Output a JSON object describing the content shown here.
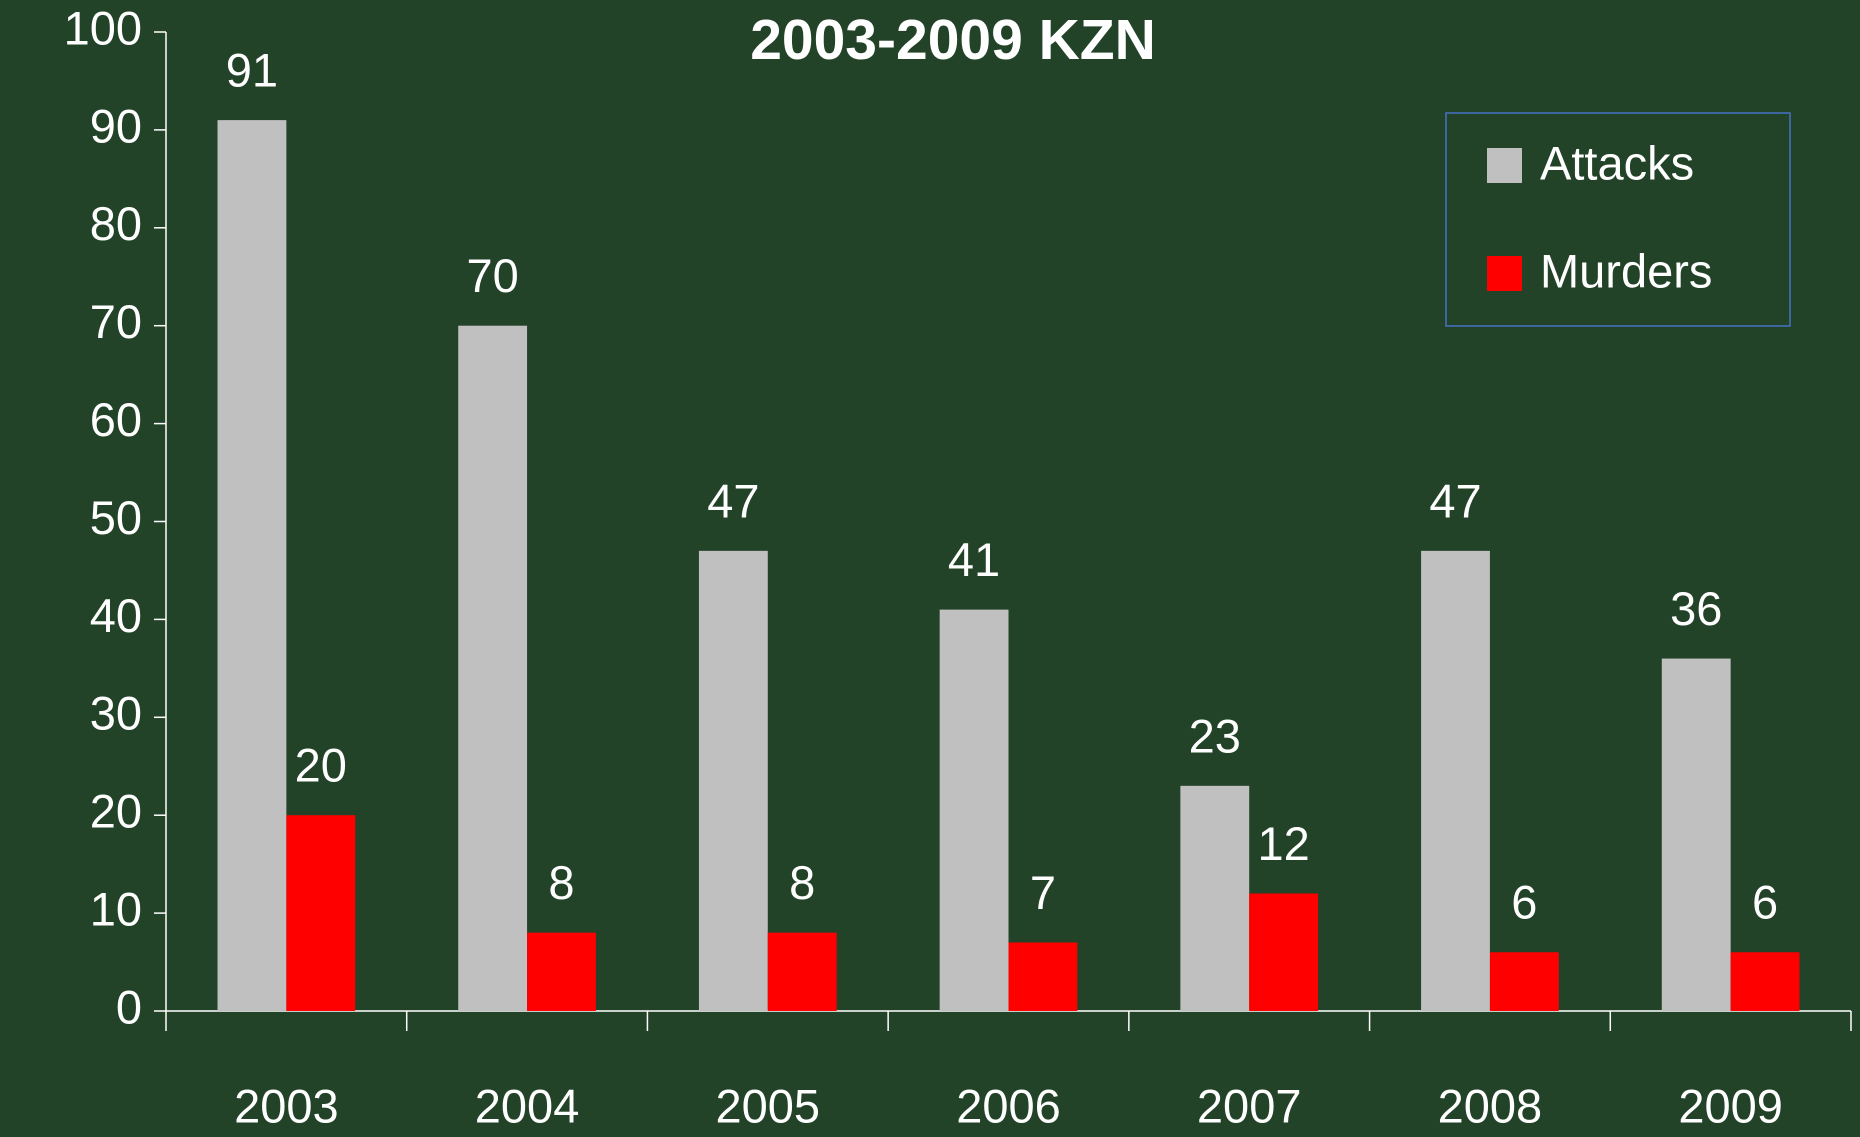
{
  "chart_data": {
    "type": "bar",
    "title": "2003-2009 KZN",
    "categories": [
      "2003",
      "2004",
      "2005",
      "2006",
      "2007",
      "2008",
      "2009"
    ],
    "series": [
      {
        "name": "Attacks",
        "color": "#c0c0c0",
        "values": [
          91,
          70,
          47,
          41,
          23,
          47,
          36
        ]
      },
      {
        "name": "Murders",
        "color": "#ff0000",
        "values": [
          20,
          8,
          8,
          7,
          12,
          6,
          6
        ]
      }
    ],
    "ylim": [
      0,
      100
    ],
    "yticks": [
      0,
      10,
      20,
      30,
      40,
      50,
      60,
      70,
      80,
      90,
      100
    ],
    "grid": false,
    "legend": "upper right"
  }
}
